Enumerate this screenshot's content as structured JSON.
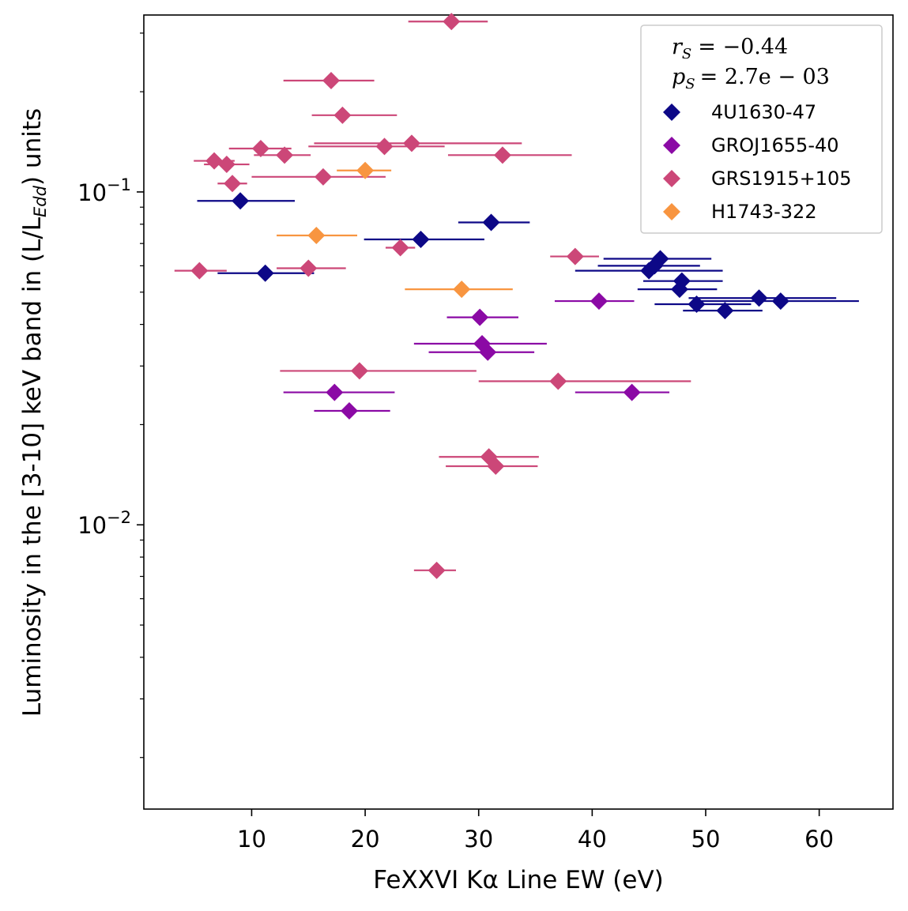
{
  "chart_data": {
    "type": "scatter",
    "xlabel": "FeXXVI Kα Line EW (eV)",
    "ylabel": "Luminosity in the [3-10] keV band in (L/L_Edd) units",
    "ylabel_parts": {
      "before": "Luminosity in the [3-10] keV band in (L/L",
      "sub": "Edd",
      "after": ") units"
    },
    "xscale": "linear",
    "yscale": "log",
    "xlim": [
      0.5,
      66.5
    ],
    "ylim": [
      0.0014,
      0.34
    ],
    "xticks": [
      10,
      20,
      30,
      40,
      50,
      60
    ],
    "xtick_labels": [
      "10",
      "20",
      "30",
      "40",
      "50",
      "60"
    ],
    "yticks_major": [
      0.01,
      0.1
    ],
    "ytick_labels": [
      {
        "base": "10",
        "exp": "−2",
        "value": 0.01
      },
      {
        "base": "10",
        "exp": "−1",
        "value": 0.1
      }
    ],
    "yticks_minor": [
      0.002,
      0.003,
      0.004,
      0.005,
      0.006,
      0.007,
      0.008,
      0.009,
      0.02,
      0.03,
      0.04,
      0.05,
      0.06,
      0.07,
      0.08,
      0.09,
      0.2,
      0.3
    ],
    "grid": false,
    "legend_position": "top-right",
    "stats": {
      "rs": {
        "label": "r",
        "sub": "S",
        "value": "= −0.44"
      },
      "ps": {
        "label": "p",
        "sub": "S",
        "value": "= 2.7e − 03"
      }
    },
    "series": [
      {
        "name": "4U1630-47",
        "color": "#0d0887",
        "marker": "diamond",
        "points": [
          {
            "x": 9.0,
            "y": 0.094,
            "xerr": [
              5.2,
              13.8
            ]
          },
          {
            "x": 11.2,
            "y": 0.057,
            "xerr": [
              7.0,
              15.5
            ]
          },
          {
            "x": 24.9,
            "y": 0.072,
            "xerr": [
              19.9,
              30.5
            ]
          },
          {
            "x": 31.1,
            "y": 0.081,
            "xerr": [
              28.2,
              34.5
            ]
          },
          {
            "x": 45.0,
            "y": 0.058,
            "xerr": [
              38.5,
              51.5
            ]
          },
          {
            "x": 45.5,
            "y": 0.06,
            "xerr": [
              40.5,
              49.5
            ]
          },
          {
            "x": 46.0,
            "y": 0.063,
            "xerr": [
              41.0,
              50.5
            ]
          },
          {
            "x": 47.7,
            "y": 0.051,
            "xerr": [
              44.0,
              51.0
            ]
          },
          {
            "x": 47.9,
            "y": 0.054,
            "xerr": [
              44.5,
              51.5
            ]
          },
          {
            "x": 49.2,
            "y": 0.046,
            "xerr": [
              45.5,
              54.0
            ]
          },
          {
            "x": 51.7,
            "y": 0.044,
            "xerr": [
              48.0,
              55.0
            ]
          },
          {
            "x": 54.7,
            "y": 0.048,
            "xerr": [
              48.5,
              61.5
            ]
          },
          {
            "x": 56.6,
            "y": 0.047,
            "xerr": [
              49.5,
              63.5
            ]
          }
        ]
      },
      {
        "name": "GROJ1655-40",
        "color": "#8b0aa5",
        "marker": "diamond",
        "points": [
          {
            "x": 17.3,
            "y": 0.025,
            "xerr": [
              12.8,
              22.6
            ]
          },
          {
            "x": 18.6,
            "y": 0.022,
            "xerr": [
              15.5,
              22.2
            ]
          },
          {
            "x": 30.1,
            "y": 0.042,
            "xerr": [
              27.2,
              33.5
            ]
          },
          {
            "x": 30.3,
            "y": 0.035,
            "xerr": [
              24.3,
              36.0
            ]
          },
          {
            "x": 30.8,
            "y": 0.033,
            "xerr": [
              25.6,
              34.9
            ]
          },
          {
            "x": 40.6,
            "y": 0.047,
            "xerr": [
              36.7,
              43.7
            ]
          },
          {
            "x": 43.5,
            "y": 0.025,
            "xerr": [
              38.5,
              46.8
            ]
          }
        ]
      },
      {
        "name": "GRS1915+105",
        "color": "#cc4778",
        "marker": "diamond",
        "points": [
          {
            "x": 27.6,
            "y": 0.325,
            "xerr": [
              23.8,
              30.8
            ]
          },
          {
            "x": 17.0,
            "y": 0.216,
            "xerr": [
              12.8,
              20.8
            ]
          },
          {
            "x": 18.0,
            "y": 0.17,
            "xerr": [
              15.3,
              22.8
            ]
          },
          {
            "x": 10.8,
            "y": 0.135,
            "xerr": [
              8.0,
              13.5
            ]
          },
          {
            "x": 12.9,
            "y": 0.129,
            "xerr": [
              10.2,
              15.2
            ]
          },
          {
            "x": 21.7,
            "y": 0.137,
            "xerr": [
              15.0,
              27.0
            ]
          },
          {
            "x": 24.1,
            "y": 0.14,
            "xerr": [
              15.5,
              33.8
            ]
          },
          {
            "x": 32.1,
            "y": 0.129,
            "xerr": [
              27.3,
              38.2
            ]
          },
          {
            "x": 6.7,
            "y": 0.124,
            "xerr": [
              4.9,
              8.5
            ]
          },
          {
            "x": 7.8,
            "y": 0.121,
            "xerr": [
              5.8,
              9.8
            ]
          },
          {
            "x": 16.3,
            "y": 0.111,
            "xerr": [
              10.0,
              21.8
            ]
          },
          {
            "x": 8.3,
            "y": 0.106,
            "xerr": [
              7.0,
              9.6
            ]
          },
          {
            "x": 23.1,
            "y": 0.068,
            "xerr": [
              21.8,
              24.4
            ]
          },
          {
            "x": 38.5,
            "y": 0.064,
            "xerr": [
              36.3,
              40.6
            ]
          },
          {
            "x": 5.4,
            "y": 0.058,
            "xerr": [
              3.2,
              7.8
            ]
          },
          {
            "x": 15.0,
            "y": 0.059,
            "xerr": [
              12.2,
              18.3
            ]
          },
          {
            "x": 19.5,
            "y": 0.029,
            "xerr": [
              12.5,
              29.8
            ]
          },
          {
            "x": 37.0,
            "y": 0.027,
            "xerr": [
              30.0,
              48.7
            ]
          },
          {
            "x": 30.9,
            "y": 0.016,
            "xerr": [
              26.5,
              35.3
            ]
          },
          {
            "x": 31.5,
            "y": 0.015,
            "xerr": [
              27.1,
              35.2
            ]
          },
          {
            "x": 26.3,
            "y": 0.0073,
            "xerr": [
              24.3,
              28.0
            ]
          }
        ]
      },
      {
        "name": "H1743-322",
        "color": "#f89540",
        "marker": "diamond",
        "points": [
          {
            "x": 20.0,
            "y": 0.116,
            "xerr": [
              17.5,
              22.3
            ]
          },
          {
            "x": 15.7,
            "y": 0.074,
            "xerr": [
              12.2,
              19.3
            ]
          },
          {
            "x": 28.5,
            "y": 0.051,
            "xerr": [
              23.5,
              33.0
            ]
          }
        ]
      }
    ]
  }
}
